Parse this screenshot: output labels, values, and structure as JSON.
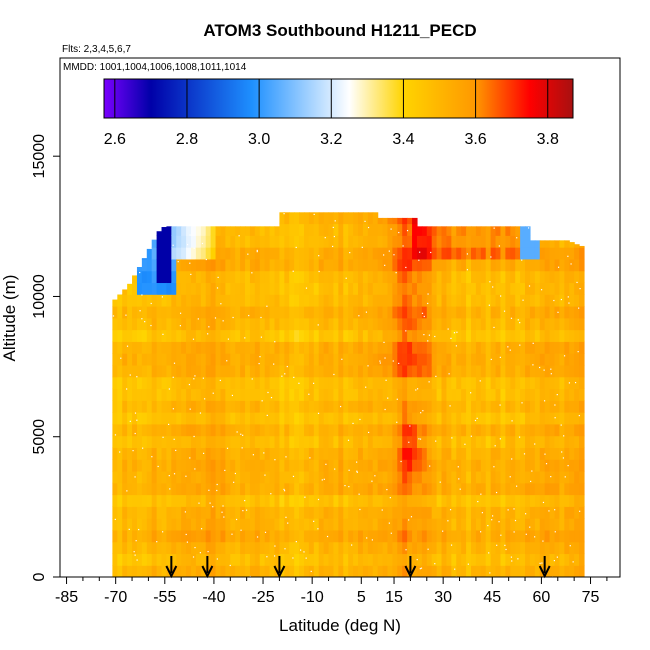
{
  "chart_data": {
    "type": "heatmap",
    "title": "ATOM3 Southbound H1211_PECD",
    "annotations": {
      "flights": "Flts: 2,3,4,5,6,7",
      "dates": "MMDD: 1001,1004,1006,1008,1011,1014"
    },
    "xlabel": "Latitude (deg N)",
    "ylabel": "Altitude (m)",
    "xlim": [
      -87,
      84
    ],
    "ylim": [
      0,
      18500
    ],
    "x_ticks": [
      -85,
      -70,
      -55,
      -40,
      -25,
      -10,
      5,
      15,
      30,
      45,
      60,
      75
    ],
    "x_minor_ticks": [
      -80,
      -75,
      -65,
      -60,
      -50,
      -45,
      -35,
      -30,
      -20,
      -15,
      -5,
      0,
      10,
      20,
      25,
      35,
      40,
      50,
      55,
      65,
      70,
      80
    ],
    "y_ticks": [
      0,
      5000,
      10000,
      15000
    ],
    "colorbar": {
      "range": [
        2.57,
        3.87
      ],
      "ticks": [
        "2.6",
        "2.8",
        "3.0",
        "3.2",
        "3.4",
        "3.6",
        "3.8"
      ],
      "tick_values": [
        2.6,
        2.8,
        3.0,
        3.2,
        3.4,
        3.6,
        3.8
      ],
      "colors": [
        "#7a00ff",
        "#0000a8",
        "#1e90ff",
        "#ffffff",
        "#ffd400",
        "#ff9800",
        "#ff0000",
        "#a81010"
      ],
      "color_stops": [
        2.57,
        2.7,
        2.98,
        3.25,
        3.4,
        3.6,
        3.75,
        3.87
      ]
    },
    "profile_markers_lat": [
      -53,
      -42,
      -20,
      20,
      61
    ],
    "data_extent": {
      "lat_min": -71,
      "lat_max": 72,
      "alt_max_by_lat": [
        [
          -71,
          9800
        ],
        [
          -66,
          10400
        ],
        [
          -62,
          11200
        ],
        [
          -57,
          12300
        ],
        [
          -55,
          12500
        ],
        [
          -20,
          12500
        ],
        [
          -20,
          13000
        ],
        [
          10,
          13000
        ],
        [
          10,
          12800
        ],
        [
          22,
          12800
        ],
        [
          22,
          12500
        ],
        [
          56,
          12500
        ],
        [
          56,
          12000
        ],
        [
          68,
          12000
        ],
        [
          72,
          11800
        ]
      ],
      "alt_min_by_lat": [
        [
          -71,
          0
        ],
        [
          72,
          0
        ]
      ]
    },
    "field_description": "H1211 PECD values mostly 3.40-3.60; elevated (3.6-3.75) near 20N aloft and 20N 4-5 km; low values (2.6-3.2) at 10-12 km south of 45S"
  }
}
